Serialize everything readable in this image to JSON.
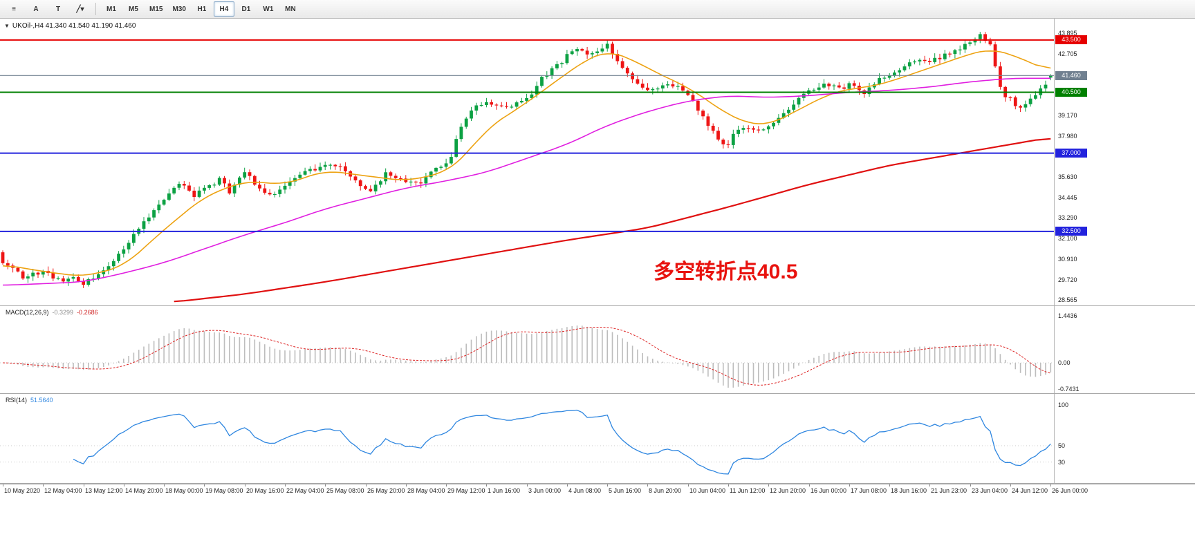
{
  "toolbar": {
    "tools": [
      {
        "name": "objects-list",
        "glyph": "≡"
      },
      {
        "name": "font",
        "glyph": "A"
      },
      {
        "name": "text-label",
        "glyph": "T"
      },
      {
        "name": "draw",
        "glyph": "╱",
        "caret": "▾"
      }
    ],
    "timeframes": [
      {
        "label": "M1",
        "active": false
      },
      {
        "label": "M5",
        "active": false
      },
      {
        "label": "M15",
        "active": false
      },
      {
        "label": "M30",
        "active": false
      },
      {
        "label": "H1",
        "active": false
      },
      {
        "label": "H4",
        "active": true
      },
      {
        "label": "D1",
        "active": false
      },
      {
        "label": "W1",
        "active": false
      },
      {
        "label": "MN",
        "active": false
      }
    ]
  },
  "chart": {
    "header": {
      "collapse_icon": "▼",
      "symbol_line": "UKOil-,H4 41.340 41.540 41.190 41.460"
    },
    "annotation": {
      "text": "多空转折点40.5",
      "color": "#e8120e"
    }
  },
  "chart_data": {
    "type": "candlestick",
    "symbol": "UKOil-",
    "timeframe": "H4",
    "last_ohlc": {
      "open": 41.34,
      "high": 41.54,
      "low": 41.19,
      "close": 41.46
    },
    "num_bars": 209,
    "first_open": 31.3,
    "candle_up_color": "#0ca143",
    "candle_down_color": "#ee1515",
    "close_anchors": [
      [
        0,
        30.8
      ],
      [
        2,
        30.3
      ],
      [
        4,
        29.9
      ],
      [
        6,
        30.1
      ],
      [
        8,
        30.2
      ],
      [
        10,
        29.8
      ],
      [
        12,
        29.6
      ],
      [
        14,
        29.8
      ],
      [
        16,
        29.5
      ],
      [
        18,
        29.8
      ],
      [
        20,
        30.3
      ],
      [
        22,
        30.8
      ],
      [
        24,
        31.5
      ],
      [
        26,
        32.3
      ],
      [
        28,
        33.0
      ],
      [
        30,
        33.7
      ],
      [
        32,
        34.3
      ],
      [
        34,
        35.0
      ],
      [
        35,
        35.3
      ],
      [
        36,
        35.1
      ],
      [
        38,
        34.6
      ],
      [
        40,
        34.9
      ],
      [
        42,
        35.3
      ],
      [
        43,
        35.5
      ],
      [
        45,
        34.8
      ],
      [
        47,
        35.5
      ],
      [
        48,
        35.9
      ],
      [
        50,
        35.3
      ],
      [
        51,
        34.9
      ],
      [
        53,
        34.7
      ],
      [
        54,
        34.6
      ],
      [
        56,
        35.2
      ],
      [
        58,
        35.6
      ],
      [
        60,
        35.9
      ],
      [
        62,
        36.1
      ],
      [
        64,
        36.3
      ],
      [
        66,
        36.3
      ],
      [
        67,
        36.2
      ],
      [
        69,
        35.7
      ],
      [
        70,
        35.4
      ],
      [
        72,
        35.0
      ],
      [
        73,
        34.9
      ],
      [
        75,
        35.5
      ],
      [
        76,
        35.8
      ],
      [
        78,
        35.6
      ],
      [
        80,
        35.4
      ],
      [
        82,
        35.2
      ],
      [
        83,
        35.2
      ],
      [
        85,
        35.9
      ],
      [
        86,
        36.1
      ],
      [
        88,
        36.3
      ],
      [
        89,
        36.9
      ],
      [
        90,
        37.8
      ],
      [
        92,
        39.0
      ],
      [
        93,
        39.5
      ],
      [
        95,
        39.8
      ],
      [
        96,
        39.9
      ],
      [
        98,
        39.7
      ],
      [
        99,
        39.6
      ],
      [
        101,
        39.7
      ],
      [
        102,
        39.8
      ],
      [
        104,
        40.1
      ],
      [
        106,
        40.9
      ],
      [
        107,
        41.3
      ],
      [
        109,
        41.8
      ],
      [
        110,
        42.0
      ],
      [
        112,
        42.6
      ],
      [
        114,
        43.1
      ],
      [
        115,
        42.9
      ],
      [
        116,
        42.8
      ],
      [
        118,
        42.9
      ],
      [
        120,
        43.2
      ],
      [
        121,
        42.8
      ],
      [
        122,
        42.3
      ],
      [
        124,
        41.6
      ],
      [
        125,
        41.2
      ],
      [
        127,
        40.8
      ],
      [
        128,
        40.6
      ],
      [
        130,
        40.8
      ],
      [
        131,
        40.9
      ],
      [
        133,
        40.9
      ],
      [
        134,
        40.8
      ],
      [
        136,
        40.4
      ],
      [
        138,
        39.4
      ],
      [
        139,
        39.0
      ],
      [
        141,
        38.2
      ],
      [
        142,
        37.9
      ],
      [
        143,
        37.6
      ],
      [
        144,
        37.5
      ],
      [
        145,
        38.0
      ],
      [
        146,
        38.3
      ],
      [
        147,
        38.5
      ],
      [
        149,
        38.3
      ],
      [
        150,
        38.3
      ],
      [
        152,
        38.6
      ],
      [
        154,
        39.0
      ],
      [
        155,
        39.3
      ],
      [
        157,
        39.9
      ],
      [
        158,
        40.2
      ],
      [
        160,
        40.5
      ],
      [
        162,
        40.8
      ],
      [
        163,
        41.0
      ],
      [
        165,
        40.8
      ],
      [
        166,
        40.7
      ],
      [
        168,
        40.9
      ],
      [
        170,
        40.6
      ],
      [
        171,
        40.5
      ],
      [
        173,
        41.0
      ],
      [
        174,
        41.2
      ],
      [
        176,
        41.5
      ],
      [
        178,
        41.8
      ],
      [
        179,
        42.0
      ],
      [
        181,
        42.3
      ],
      [
        182,
        42.4
      ],
      [
        184,
        42.2
      ],
      [
        186,
        42.5
      ],
      [
        187,
        42.7
      ],
      [
        189,
        42.9
      ],
      [
        190,
        43.0
      ],
      [
        192,
        43.3
      ],
      [
        193,
        43.6
      ],
      [
        194,
        43.8
      ],
      [
        195,
        43.5
      ],
      [
        196,
        43.2
      ],
      [
        197,
        42.0
      ],
      [
        198,
        40.9
      ],
      [
        199,
        40.3
      ],
      [
        200,
        40.1
      ],
      [
        201,
        39.8
      ],
      [
        202,
        39.6
      ],
      [
        203,
        39.9
      ],
      [
        204,
        40.1
      ],
      [
        205,
        40.3
      ],
      [
        206,
        40.6
      ],
      [
        207,
        41.0
      ],
      [
        208,
        41.46
      ]
    ],
    "moving_averages": [
      {
        "name": "fast-ma",
        "color": "#eda211",
        "width": 1.6,
        "anchors": [
          [
            0,
            30.6
          ],
          [
            8,
            30.2
          ],
          [
            16,
            29.9
          ],
          [
            24,
            30.5
          ],
          [
            32,
            32.6
          ],
          [
            40,
            34.5
          ],
          [
            48,
            35.4
          ],
          [
            56,
            35.2
          ],
          [
            64,
            36.0
          ],
          [
            72,
            35.7
          ],
          [
            80,
            35.4
          ],
          [
            88,
            35.9
          ],
          [
            92,
            36.9
          ],
          [
            96,
            38.4
          ],
          [
            104,
            39.9
          ],
          [
            112,
            41.6
          ],
          [
            116,
            42.4
          ],
          [
            120,
            42.9
          ],
          [
            124,
            42.5
          ],
          [
            128,
            41.9
          ],
          [
            132,
            41.3
          ],
          [
            136,
            40.8
          ],
          [
            140,
            40.0
          ],
          [
            144,
            39.2
          ],
          [
            148,
            38.7
          ],
          [
            152,
            38.6
          ],
          [
            156,
            39.2
          ],
          [
            160,
            39.8
          ],
          [
            164,
            40.4
          ],
          [
            168,
            40.7
          ],
          [
            172,
            40.8
          ],
          [
            176,
            41.1
          ],
          [
            180,
            41.5
          ],
          [
            184,
            41.9
          ],
          [
            188,
            42.3
          ],
          [
            192,
            42.7
          ],
          [
            196,
            43.0
          ],
          [
            200,
            42.7
          ],
          [
            204,
            42.2
          ],
          [
            208,
            41.7
          ]
        ]
      },
      {
        "name": "medium-ma",
        "color": "#e01fe0",
        "width": 1.6,
        "anchors": [
          [
            0,
            29.4
          ],
          [
            8,
            29.5
          ],
          [
            16,
            29.6
          ],
          [
            24,
            30.1
          ],
          [
            32,
            30.7
          ],
          [
            40,
            31.5
          ],
          [
            48,
            32.3
          ],
          [
            56,
            33.0
          ],
          [
            64,
            33.8
          ],
          [
            72,
            34.4
          ],
          [
            80,
            35.0
          ],
          [
            88,
            35.4
          ],
          [
            96,
            35.9
          ],
          [
            104,
            36.7
          ],
          [
            112,
            37.5
          ],
          [
            120,
            38.6
          ],
          [
            128,
            39.4
          ],
          [
            136,
            40.0
          ],
          [
            144,
            40.3
          ],
          [
            152,
            40.2
          ],
          [
            160,
            40.3
          ],
          [
            168,
            40.5
          ],
          [
            176,
            40.6
          ],
          [
            184,
            40.8
          ],
          [
            192,
            41.1
          ],
          [
            200,
            41.3
          ],
          [
            208,
            41.3
          ]
        ]
      },
      {
        "name": "slow-ma",
        "color": "#e01010",
        "width": 2.2,
        "anchors": [
          [
            34,
            28.45
          ],
          [
            48,
            28.9
          ],
          [
            64,
            29.6
          ],
          [
            80,
            30.4
          ],
          [
            96,
            31.2
          ],
          [
            112,
            32.0
          ],
          [
            128,
            32.7
          ],
          [
            144,
            33.9
          ],
          [
            160,
            35.2
          ],
          [
            176,
            36.3
          ],
          [
            192,
            37.1
          ],
          [
            200,
            37.5
          ],
          [
            208,
            37.9
          ]
        ]
      }
    ],
    "horizontal_lines": [
      {
        "price": 43.5,
        "label": "43.500",
        "color": "#e60000",
        "width": 2
      },
      {
        "price": 41.46,
        "label": "41.460",
        "color": "#708090",
        "width": 1.2
      },
      {
        "price": 40.5,
        "label": "40.500",
        "color": "#008000",
        "width": 2
      },
      {
        "price": 37.0,
        "label": "37.000",
        "color": "#2323dd",
        "width": 2
      },
      {
        "price": 32.5,
        "label": "32.500",
        "color": "#2323dd",
        "width": 2
      }
    ],
    "y_axis_labels": [
      "43.895",
      "42.705",
      "39.170",
      "37.980",
      "35.630",
      "34.445",
      "33.290",
      "32.100",
      "30.910",
      "29.720",
      "28.565"
    ],
    "y_axis_label_prices": [
      43.895,
      42.705,
      39.17,
      37.98,
      35.63,
      34.445,
      33.29,
      32.1,
      30.91,
      29.72,
      28.565
    ],
    "x_axis_labels": [
      "10 May 2020",
      "12 May 04:00",
      "13 May 12:00",
      "14 May 20:00",
      "18 May 00:00",
      "19 May 08:00",
      "20 May 16:00",
      "22 May 04:00",
      "25 May 08:00",
      "26 May 20:00",
      "28 May 04:00",
      "29 May 12:00",
      "1 Jun 16:00",
      "3 Jun 00:00",
      "4 Jun 08:00",
      "5 Jun 16:00",
      "8 Jun 20:00",
      "10 Jun 04:00",
      "11 Jun 12:00",
      "12 Jun 20:00",
      "16 Jun 00:00",
      "17 Jun 08:00",
      "18 Jun 16:00",
      "21 Jun 23:00",
      "23 Jun 04:00",
      "24 Jun 12:00",
      "26 Jun 00:00"
    ],
    "x_label_step": 8,
    "macd": {
      "label": "MACD(12,26,9)",
      "value_main": "-0.3299",
      "value_signal": "-0.2686",
      "fast": 12,
      "slow": 26,
      "signal": 9,
      "scale_labels": [
        "1.4436",
        "0.00",
        "-0.7431"
      ],
      "bar_color": "#bdbdbd",
      "signal_color": "#dd2222"
    },
    "rsi": {
      "label": "RSI(14)",
      "value": "51.5640",
      "period": 14,
      "scale_labels": [
        "100",
        "50",
        "30"
      ],
      "levels": [
        50,
        30
      ],
      "line_color": "#2e86e0"
    }
  }
}
